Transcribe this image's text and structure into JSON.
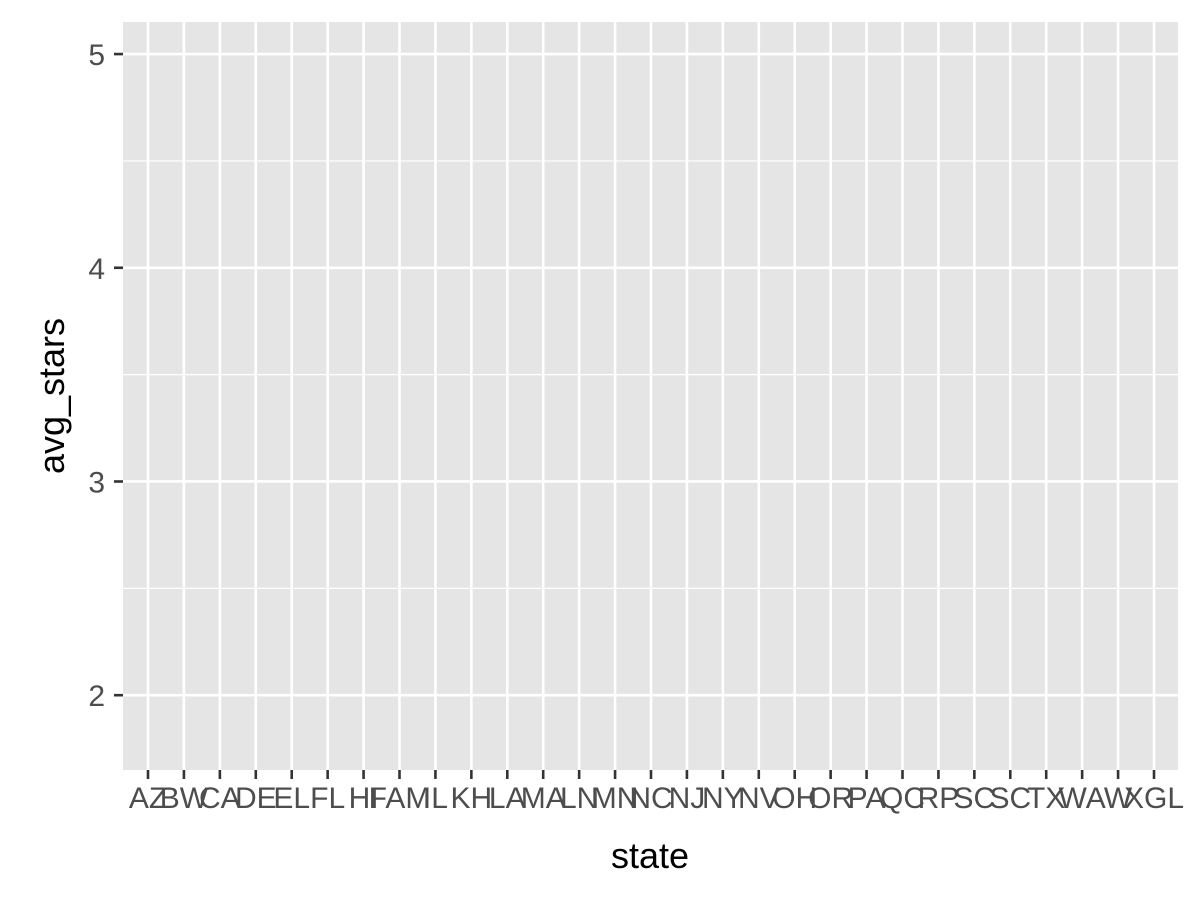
{
  "chart_data": {
    "type": "scatter",
    "title": "",
    "xlabel": "state",
    "ylabel": "avg_stars",
    "categories": [
      "AZ",
      "BW",
      "CA",
      "DE",
      "EL",
      "FL",
      "HI",
      "FAM",
      "IL",
      "KH",
      "LA",
      "MA",
      "LN",
      "MN",
      "NC",
      "NJ",
      "NY",
      "NV",
      "OH",
      "OR",
      "PA",
      "QC",
      "RP",
      "SC",
      "SC",
      "TX",
      "WA",
      "W",
      "XGL"
    ],
    "y_ticks": [
      "2",
      "3",
      "4",
      "5"
    ],
    "ylim": [
      1.65,
      5.15
    ],
    "grid": true,
    "panel_color": "#e5e5e5",
    "grid_color": "#ffffff",
    "tick_color": "#333333",
    "text_color": "#4d4d4d",
    "series": [
      {
        "values": []
      }
    ]
  }
}
